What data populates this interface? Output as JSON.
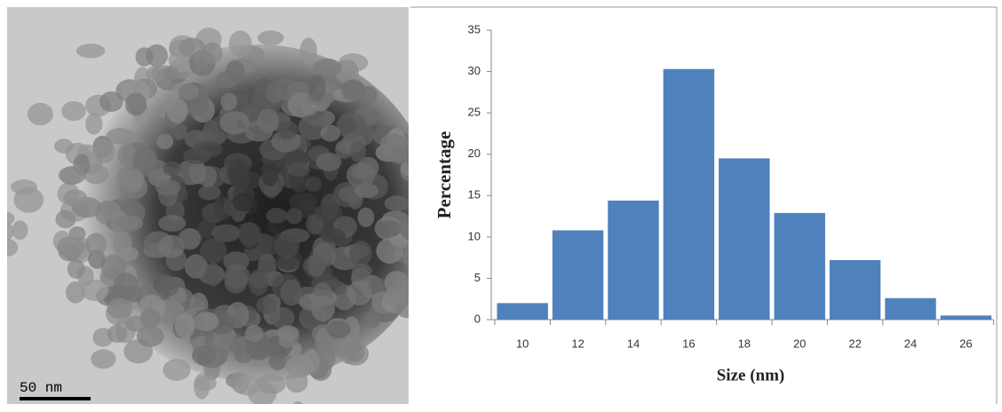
{
  "image": {
    "scale_bar": "50 nm"
  },
  "chart_data": {
    "type": "bar",
    "x_label": "Size (nm)",
    "y_label": "Percentage",
    "categories": [
      "10",
      "12",
      "14",
      "16",
      "18",
      "20",
      "22",
      "24",
      "26"
    ],
    "values": [
      2,
      10.8,
      14.4,
      30.3,
      19.5,
      12.9,
      7.2,
      2.6,
      0.5
    ],
    "color": "#4f81bd",
    "ylim": [
      0,
      35
    ],
    "yticks": [
      0,
      5,
      10,
      15,
      20,
      25,
      30,
      35
    ],
    "grid": false
  }
}
